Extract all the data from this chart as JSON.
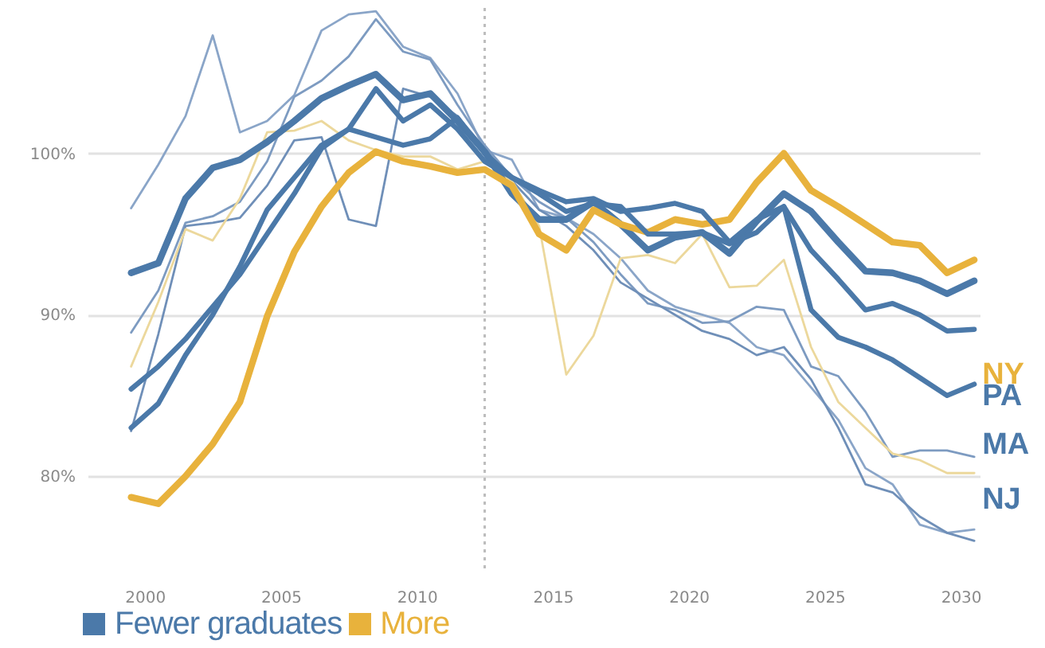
{
  "chart_data": {
    "type": "line",
    "x": [
      1999.5,
      2000.5,
      2001.5,
      2002.5,
      2003.5,
      2004.5,
      2005.5,
      2006.5,
      2007.5,
      2008.5,
      2009.5,
      2010.5,
      2011.5,
      2012.5,
      2013.5,
      2014.5,
      2015.5,
      2016.5,
      2017.5,
      2018.5,
      2019.5,
      2020.5,
      2021.5,
      2022.5,
      2023.5,
      2024.5,
      2025.5,
      2026.5,
      2027.5,
      2028.5,
      2029.5,
      2030.5
    ],
    "series": [
      {
        "name": "PA",
        "color": "#4b79a9",
        "values": [
          92.6,
          93.2,
          97.2,
          99.1,
          99.6,
          100.7,
          102.0,
          103.4,
          104.2,
          104.9,
          103.3,
          103.7,
          102.0,
          100.1,
          97.5,
          95.9,
          95.9,
          97.0,
          95.6,
          94.0,
          94.8,
          95.1,
          93.8,
          95.8,
          97.5,
          96.4,
          94.5,
          92.7,
          92.6,
          92.1,
          91.3,
          92.1
        ]
      },
      {
        "name": "NY",
        "color": "#e8b23c",
        "values": [
          78.7,
          78.3,
          80.0,
          82.0,
          84.6,
          89.9,
          93.9,
          96.7,
          98.8,
          100.1,
          99.5,
          99.2,
          98.8,
          99.0,
          98.0,
          95.0,
          94.0,
          96.5,
          95.6,
          95.1,
          95.9,
          95.6,
          95.9,
          98.2,
          100.0,
          97.7,
          96.7,
          95.6,
          94.5,
          94.3,
          92.6,
          93.4
        ]
      },
      {
        "name": "MA",
        "color": "#4b79a9",
        "values": [
          85.4,
          86.8,
          88.5,
          90.5,
          92.5,
          95.0,
          97.5,
          100.3,
          101.5,
          101.0,
          100.5,
          100.9,
          102.2,
          100.0,
          98.5,
          97.7,
          97.0,
          97.2,
          96.4,
          96.6,
          96.9,
          96.4,
          94.5,
          95.9,
          96.7,
          94.0,
          92.2,
          90.3,
          90.7,
          90.0,
          89.0,
          89.1
        ]
      },
      {
        "name": "NJ",
        "color": "#4b79a9",
        "values": [
          83.0,
          84.5,
          87.5,
          90.0,
          93.0,
          96.5,
          98.5,
          100.5,
          101.5,
          104.0,
          102.0,
          103.0,
          101.5,
          99.5,
          98.5,
          97.5,
          96.4,
          96.9,
          96.7,
          95.0,
          95.0,
          95.1,
          94.4,
          95.1,
          96.7,
          90.3,
          88.6,
          88.0,
          87.2,
          86.1,
          85.0,
          85.7
        ]
      },
      {
        "color": "#8aa5c8",
        "values": [
          96.6,
          99.3,
          102.3,
          107.3,
          101.3,
          102.0,
          103.6,
          107.6,
          108.6,
          108.8,
          106.6,
          105.9,
          103.7,
          100.2,
          99.6,
          96.5,
          96.0,
          95.0,
          93.5,
          91.5,
          90.5,
          90.0,
          89.5,
          88.0,
          87.5,
          85.5,
          83.5,
          80.5,
          79.5,
          77.0,
          76.5,
          76.7
        ]
      },
      {
        "color": "#7d9bc1",
        "values": [
          88.9,
          91.5,
          95.7,
          96.1,
          97.0,
          99.5,
          103.5,
          104.5,
          106.0,
          108.3,
          106.3,
          105.8,
          103.0,
          100.5,
          98.5,
          97.0,
          96.0,
          94.5,
          92.5,
          90.7,
          90.3,
          89.5,
          89.6,
          90.5,
          90.3,
          86.8,
          86.2,
          84.0,
          81.2,
          81.6,
          81.6,
          81.2
        ]
      },
      {
        "color": "#6f8fb8",
        "values": [
          82.8,
          88.8,
          95.5,
          95.7,
          96.0,
          98.0,
          100.8,
          101.0,
          95.9,
          95.5,
          104.0,
          103.5,
          102.3,
          100.3,
          98.3,
          96.5,
          95.5,
          94.0,
          92.0,
          91.0,
          90.0,
          89.0,
          88.5,
          87.5,
          88.0,
          86.0,
          83.0,
          79.5,
          79.0,
          77.5,
          76.5,
          76.0
        ]
      },
      {
        "color": "#ecd89c",
        "values": [
          86.8,
          90.8,
          95.3,
          94.6,
          97.2,
          101.3,
          101.4,
          102.0,
          100.8,
          100.2,
          99.8,
          99.8,
          99.0,
          99.5,
          98.3,
          95.5,
          86.3,
          88.7,
          93.5,
          93.7,
          93.2,
          95.0,
          91.7,
          91.8,
          93.4,
          88.0,
          84.6,
          83.0,
          81.4,
          81.0,
          80.2,
          80.2
        ]
      }
    ],
    "xlim": [
      1997.9,
      2030.7
    ],
    "ylim": [
      74,
      109
    ],
    "xticks": [
      2000,
      2005,
      2010,
      2015,
      2020,
      2025,
      2030
    ],
    "yticks": [
      {
        "value": 80,
        "label": "80%"
      },
      {
        "value": 90,
        "label": "90%"
      },
      {
        "value": 100,
        "label": "100%"
      }
    ],
    "grid": "y",
    "ref_lines": [
      {
        "axis": "x",
        "value": 2012.5,
        "line_style": "dotted"
      }
    ],
    "annotations": [
      "Fewer graduates",
      "More"
    ]
  }
}
